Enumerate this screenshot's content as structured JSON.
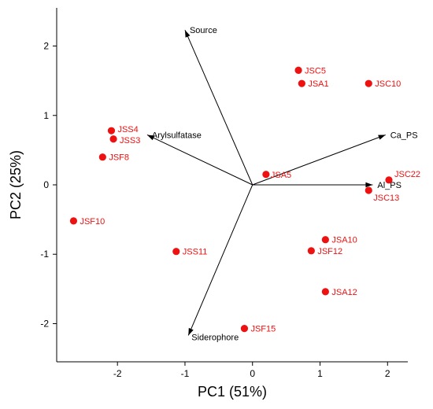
{
  "chart_data": {
    "type": "scatter",
    "xlabel": "PC1 (51%)",
    "ylabel": "PC2 (25%)",
    "xlim": [
      -2.9,
      2.3
    ],
    "ylim": [
      -2.55,
      2.55
    ],
    "xticks": [
      -2,
      -1,
      0,
      1,
      2
    ],
    "yticks": [
      -2,
      -1,
      0,
      1,
      2
    ],
    "point_color": "#ee1111",
    "points": [
      {
        "label": "JSC5",
        "x": 0.68,
        "y": 1.65
      },
      {
        "label": "JSA1",
        "x": 0.73,
        "y": 1.46
      },
      {
        "label": "JSC10",
        "x": 1.72,
        "y": 1.46
      },
      {
        "label": "JSS4",
        "x": -2.09,
        "y": 0.78
      },
      {
        "label": "JSS3",
        "x": -2.06,
        "y": 0.66
      },
      {
        "label": "JSF8",
        "x": -2.22,
        "y": 0.4
      },
      {
        "label": "JSA5",
        "x": 0.2,
        "y": 0.15
      },
      {
        "label": "JSC22",
        "x": 2.02,
        "y": 0.07
      },
      {
        "label": "JSC13",
        "x": 1.72,
        "y": -0.08
      },
      {
        "label": "JSF10",
        "x": -2.65,
        "y": -0.52
      },
      {
        "label": "JSS11",
        "x": -1.13,
        "y": -0.96
      },
      {
        "label": "JSA10",
        "x": 1.08,
        "y": -0.79
      },
      {
        "label": "JSF12",
        "x": 0.87,
        "y": -0.95
      },
      {
        "label": "JSA12",
        "x": 1.08,
        "y": -1.54
      },
      {
        "label": "JSF15",
        "x": -0.12,
        "y": -2.07
      }
    ],
    "vectors": [
      {
        "label": "Source",
        "x": -1.0,
        "y": 2.23
      },
      {
        "label": "Arylsulfatase",
        "x": -1.56,
        "y": 0.72
      },
      {
        "label": "Ca_PS",
        "x": 1.97,
        "y": 0.72
      },
      {
        "label": "Al_PS",
        "x": 1.78,
        "y": 0.0
      },
      {
        "label": "Siderophore",
        "x": -0.95,
        "y": -2.17
      }
    ]
  }
}
